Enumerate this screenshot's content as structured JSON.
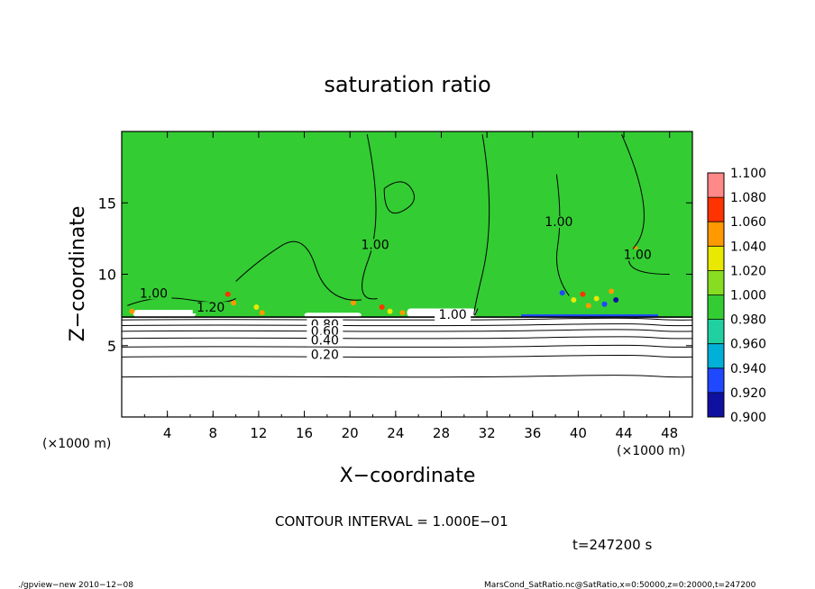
{
  "chart_data": {
    "type": "heatmap",
    "title": "saturation ratio",
    "xlabel": "X−coordinate",
    "ylabel": "Z−coordinate",
    "x_unit": "(×1000 m)",
    "y_unit": "(×1000 m)",
    "xlim": [
      0,
      50
    ],
    "ylim": [
      0,
      20
    ],
    "x_ticks": [
      4,
      8,
      12,
      16,
      20,
      24,
      28,
      32,
      36,
      40,
      44,
      48
    ],
    "y_ticks": [
      5,
      10,
      15
    ],
    "colorbar": {
      "levels": [
        0.9,
        0.92,
        0.94,
        0.96,
        0.98,
        1.0,
        1.02,
        1.04,
        1.06,
        1.08,
        1.1
      ],
      "labels": [
        "1.100",
        "1.080",
        "1.060",
        "1.040",
        "1.020",
        "1.000",
        "0.980",
        "0.960",
        "0.940",
        "0.920",
        "0.900"
      ],
      "colors": [
        "#6a0dad",
        "#1010a0",
        "#1f48ff",
        "#00b0d8",
        "#20d0a0",
        "#33cc33",
        "#88dd22",
        "#e8e800",
        "#ff9900",
        "#ff3300",
        "#ff8888"
      ]
    },
    "contour_labels": [
      {
        "text": "1.00",
        "x": 2.8,
        "z": 8.5
      },
      {
        "text": "1.20",
        "x": 7.8,
        "z": 7.5
      },
      {
        "text": "1.00",
        "x": 22.2,
        "z": 11.9
      },
      {
        "text": "1.00",
        "x": 29.0,
        "z": 7.0
      },
      {
        "text": "1.00",
        "x": 38.3,
        "z": 13.5
      },
      {
        "text": "1.00",
        "x": 45.2,
        "z": 11.2
      },
      {
        "text": "0.80",
        "x": 17.8,
        "z": 6.3
      },
      {
        "text": "0.60",
        "x": 17.8,
        "z": 5.85
      },
      {
        "text": "0.40",
        "x": 17.8,
        "z": 5.2
      },
      {
        "text": "0.20",
        "x": 17.8,
        "z": 4.2
      }
    ],
    "lower_contours_z": [
      2.8,
      4.2,
      4.9,
      5.5,
      6.0,
      6.4,
      6.8
    ],
    "saturated_layer_base_z": 7.0,
    "contour_interval_text": "CONTOUR INTERVAL = 1.000E−01",
    "time_text": "t=247200 s",
    "footer_left": "./gpview−new   2010−12−08",
    "footer_right": "MarsCond_SatRatio.nc@SatRatio,x=0:50000,z=0:20000,t=247200"
  }
}
